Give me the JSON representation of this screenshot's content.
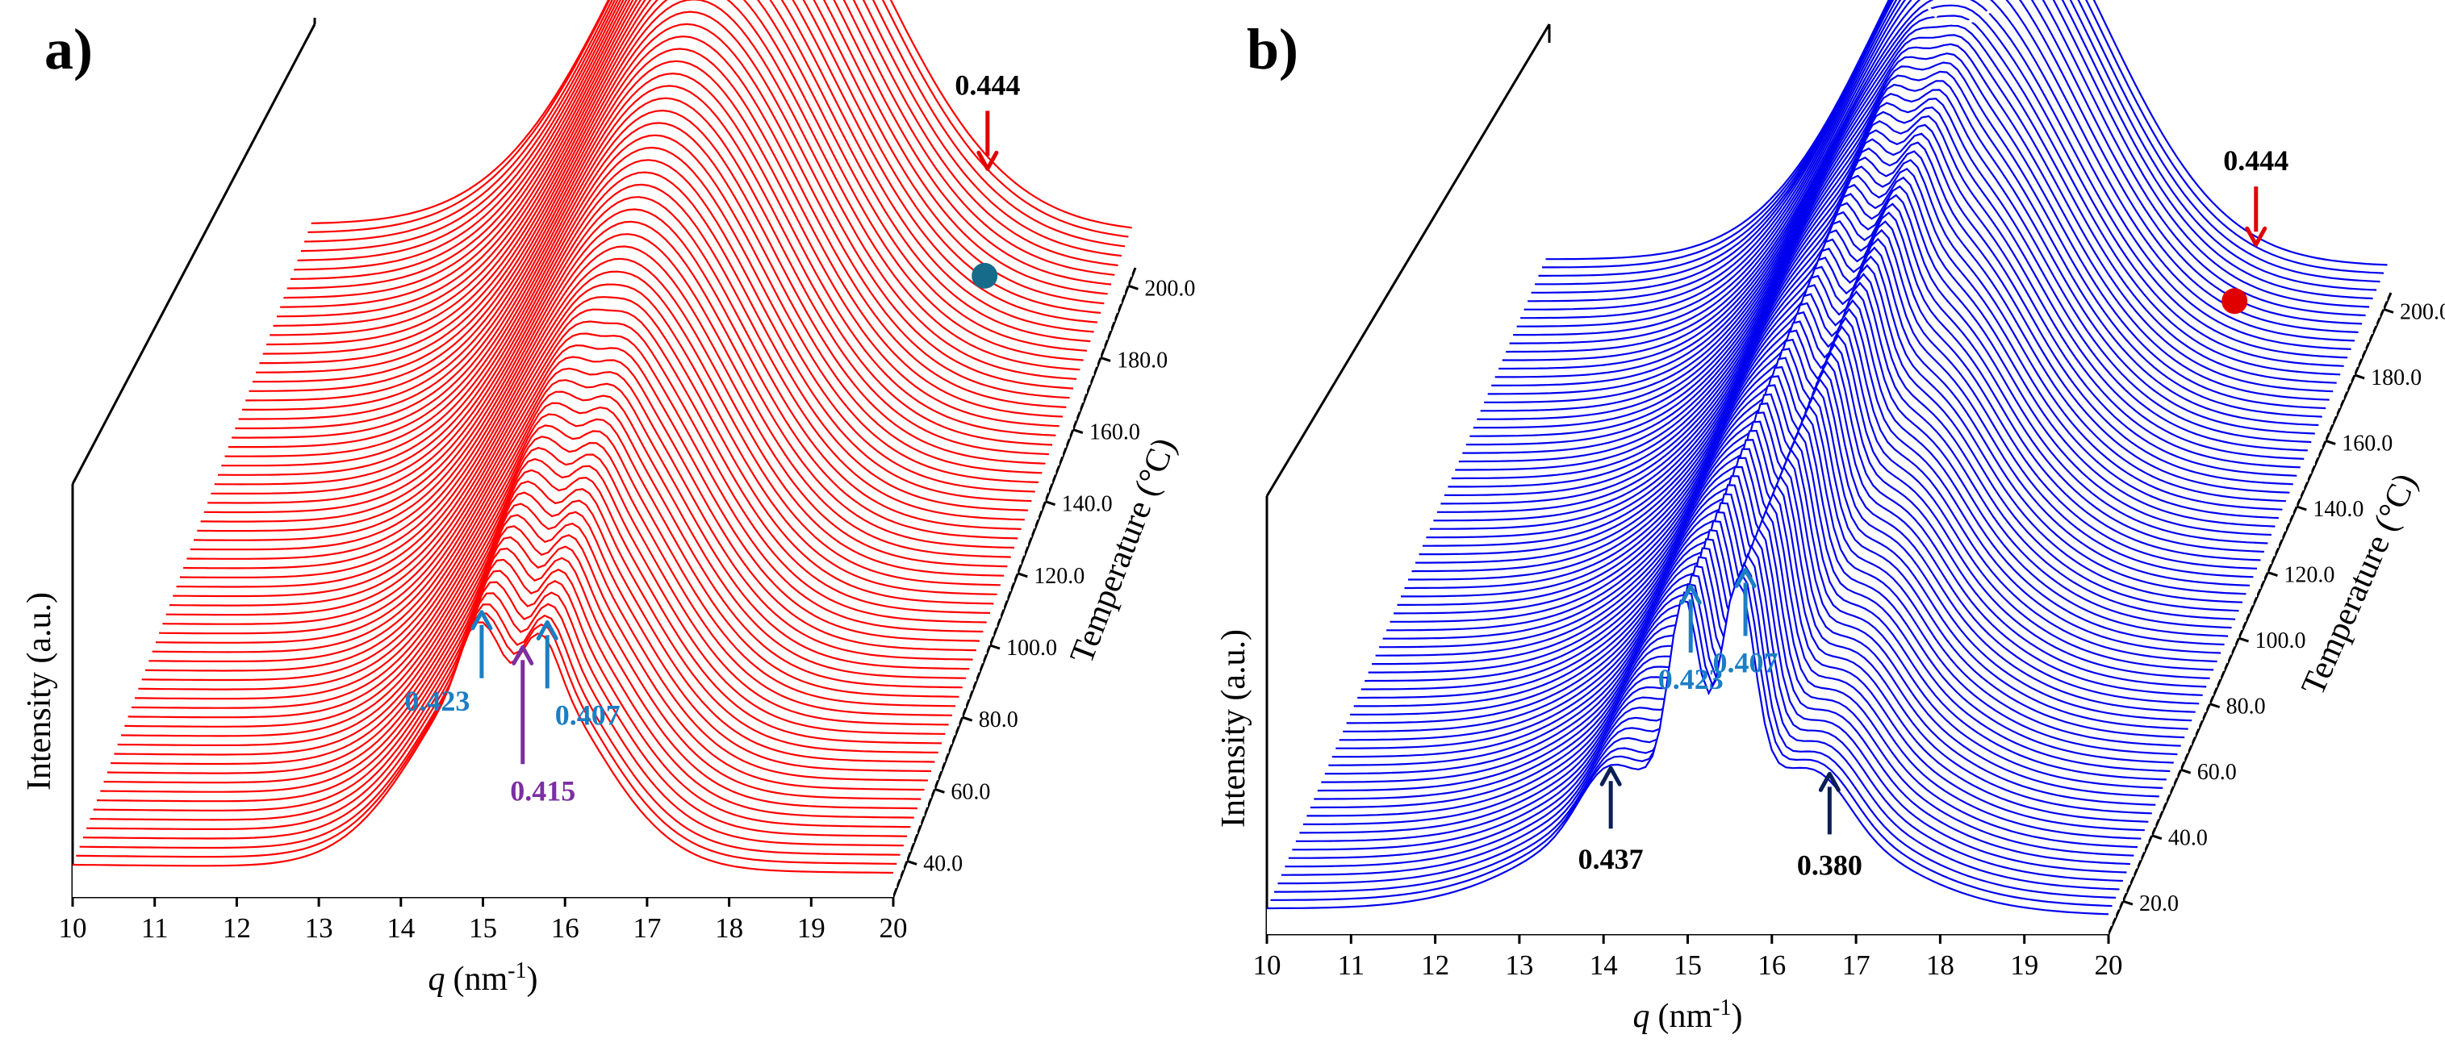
{
  "chart_data": [
    {
      "panel_label": "a)",
      "type": "line",
      "subtype": "waterfall-3d",
      "title": "",
      "x": {
        "label_var": "q",
        "label_unit": "(nm",
        "label_exp": "-1",
        "label_close": ")",
        "range": [
          10,
          20
        ],
        "ticks": [
          "10",
          "11",
          "12",
          "13",
          "14",
          "15",
          "16",
          "17",
          "18",
          "19",
          "20"
        ]
      },
      "z": {
        "label": "Intensity (a.u.)"
      },
      "y": {
        "label": "Temperature (°C)",
        "range": [
          30,
          205
        ],
        "ticks": [
          "40.0",
          "60.0",
          "80.0",
          "100.0",
          "120.0",
          "140.0",
          "160.0",
          "180.0",
          "200.0"
        ]
      },
      "series_color": "#ff0000",
      "temperature_step": 2.5,
      "annotations": [
        {
          "text": "0.444",
          "q": 18.3,
          "color": "#000000",
          "arrow": "#e00000",
          "position": "top"
        },
        {
          "text": "0.423",
          "q": 14.9,
          "color": "#1a7fc4",
          "arrow": "#1a7fc4",
          "position": "below-left"
        },
        {
          "text": "0.407",
          "q": 15.7,
          "color": "#1a7fc4",
          "arrow": "#1a7fc4",
          "position": "below-right"
        },
        {
          "text": "0.415",
          "q": 15.4,
          "color": "#7b2fa0",
          "arrow": "#7b2fa0",
          "position": "bottom"
        }
      ],
      "marker": {
        "color": "#166b8a",
        "q": 18.5,
        "temperature": 185
      },
      "peak_evolution": [
        {
          "temperature": 40,
          "peaks": [
            {
              "q": 14.9,
              "height": 0.6,
              "width": 0.45
            },
            {
              "q": 15.7,
              "height": 0.55,
              "width": 0.4
            }
          ],
          "broad": {
            "q": 15.3,
            "height": 0.7,
            "width": 1.3
          }
        },
        {
          "temperature": 200,
          "peaks": [
            {
              "q": 15.3,
              "height": 1.0,
              "width": 1.5
            }
          ]
        }
      ]
    },
    {
      "panel_label": "b)",
      "type": "line",
      "subtype": "waterfall-3d",
      "title": "",
      "x": {
        "label_var": "q",
        "label_unit": "(nm",
        "label_exp": "-1",
        "label_close": ")",
        "range": [
          10,
          20
        ],
        "ticks": [
          "10",
          "11",
          "12",
          "13",
          "14",
          "15",
          "16",
          "17",
          "18",
          "19",
          "20"
        ]
      },
      "z": {
        "label": "Intensity (a.u.)"
      },
      "y": {
        "label": "Temperature (°C)",
        "range": [
          10,
          205
        ],
        "ticks": [
          "20.0",
          "40.0",
          "60.0",
          "80.0",
          "100.0",
          "120.0",
          "140.0",
          "160.0",
          "180.0",
          "200.0"
        ]
      },
      "series_color": "#0000ee",
      "temperature_step": 2.5,
      "annotations": [
        {
          "text": "0.444",
          "q": 18.5,
          "color": "#000000",
          "arrow": "#e00000",
          "position": "top"
        },
        {
          "text": "0.423",
          "q": 14.95,
          "color": "#1a7fc4",
          "arrow": "#1a7fc4",
          "position": "below"
        },
        {
          "text": "0.407",
          "q": 15.6,
          "color": "#1a7fc4",
          "arrow": "#1a7fc4",
          "position": "below"
        },
        {
          "text": "0.437",
          "q": 14.0,
          "color": "#000000",
          "arrow": "#0a1f55",
          "position": "bottom"
        },
        {
          "text": "0.380",
          "q": 16.6,
          "color": "#000000",
          "arrow": "#0a1f55",
          "position": "bottom"
        }
      ],
      "marker": {
        "color": "#e00000",
        "q": 18.4,
        "temperature": 190
      },
      "peak_evolution": [
        {
          "temperature": 20,
          "peaks": [
            {
              "q": 14.0,
              "height": 0.12,
              "width": 0.3
            },
            {
              "q": 14.95,
              "height": 0.45,
              "width": 0.2
            },
            {
              "q": 15.6,
              "height": 0.5,
              "width": 0.22
            },
            {
              "q": 16.6,
              "height": 0.12,
              "width": 0.3
            }
          ]
        },
        {
          "temperature": 200,
          "peaks": [
            {
              "q": 15.3,
              "height": 0.95,
              "width": 1.4
            }
          ]
        }
      ]
    }
  ]
}
